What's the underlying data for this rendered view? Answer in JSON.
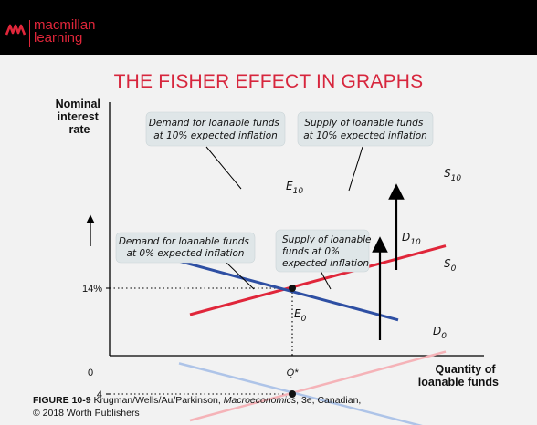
{
  "header": {
    "brand_line1": "macmillan",
    "brand_line2": "learning"
  },
  "slide_title": "THE FISHER EFFECT IN GRAPHS",
  "caption": {
    "figure_label": "FIGURE 10-9",
    "authors": " Krugman/Wells/Au/Parkinson, ",
    "book": "Macroeconomics",
    "edition": ", 3e, Canadian,",
    "copyright": "© 2018 Worth Publishers"
  },
  "colors": {
    "demand_10": "#2e4fa3",
    "supply_10": "#e0263a",
    "demand_0": "#aec4e8",
    "supply_0": "#f5b3b8",
    "callout_fill": "#dfe6e8",
    "brand": "#e0263a"
  },
  "chart_data": {
    "type": "line",
    "title": "",
    "ylabel": [
      "Nominal",
      "interest",
      "rate"
    ],
    "xlabel": [
      "Quantity of",
      "loanable funds"
    ],
    "x_ticks": [
      {
        "value": 0,
        "label": "0"
      },
      {
        "value": 1,
        "label": "Q*"
      }
    ],
    "y_ticks": [
      {
        "value": 4,
        "label": "4"
      },
      {
        "value": 14,
        "label": "14%"
      }
    ],
    "xlim": [
      0,
      2
    ],
    "ylim": [
      -4,
      22
    ],
    "series": [
      {
        "name": "S10",
        "label_main": "S",
        "label_sub": "10",
        "color": "#e0263a",
        "width": 3,
        "points": [
          [
            0.44,
            11.5
          ],
          [
            1.84,
            18.0
          ]
        ]
      },
      {
        "name": "D10",
        "label_main": "D",
        "label_sub": "10",
        "color": "#2e4fa3",
        "width": 3,
        "points": [
          [
            0.22,
            17.3
          ],
          [
            1.58,
            11.0
          ]
        ]
      },
      {
        "name": "S0",
        "label_main": "S",
        "label_sub": "0",
        "color": "#f5b3b8",
        "width": 2.5,
        "points": [
          [
            0.44,
            1.5
          ],
          [
            1.84,
            8.0
          ]
        ]
      },
      {
        "name": "D0",
        "label_main": "D",
        "label_sub": "0",
        "color": "#aec4e8",
        "width": 2.5,
        "points": [
          [
            0.38,
            6.9
          ],
          [
            1.84,
            0.4
          ]
        ]
      }
    ],
    "equilibria": [
      {
        "name": "E10",
        "label_main": "E",
        "label_sub": "10",
        "x": 1,
        "y": 14
      },
      {
        "name": "E0",
        "label_main": "E",
        "label_sub": "0",
        "x": 1,
        "y": 4
      }
    ],
    "annotations": [
      {
        "name": "demand-10-callout",
        "lines": [
          "Demand for loanable funds",
          "at 10% expected inflation"
        ]
      },
      {
        "name": "supply-10-callout",
        "lines": [
          "Supply of loanable funds",
          "at 10% expected inflation"
        ]
      },
      {
        "name": "demand-0-callout",
        "lines": [
          "Demand for loanable funds",
          "at 0% expected inflation"
        ]
      },
      {
        "name": "supply-0-callout",
        "lines": [
          "Supply of loanable",
          "funds at 0%",
          "expected inflation"
        ]
      }
    ]
  }
}
